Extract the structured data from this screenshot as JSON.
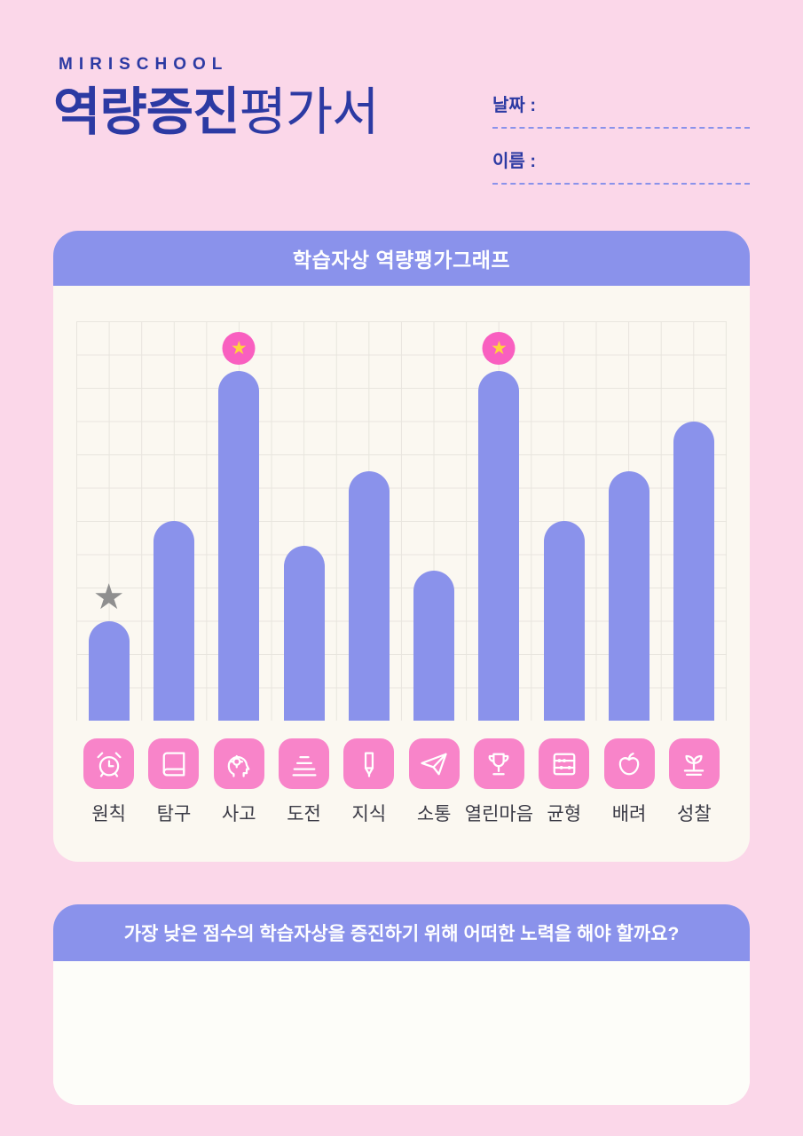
{
  "colors": {
    "page_bg": "#FBD7E9",
    "brand_blue": "#2C3AA3",
    "purple": "#8A92EB",
    "card_bg": "#FBF8F1",
    "grid_line": "#E8E5DE",
    "tile_pink": "#F884C9",
    "badge_pink": "#F95FC0",
    "star_yellow": "#FFD43B",
    "star_gray": "#8F8F8F",
    "label_dark": "#3B3B46",
    "answer_bg": "#FDFDF9"
  },
  "header": {
    "brand": "MIRISCHOOL",
    "title_bold": "역량증진",
    "title_regular": "평가서",
    "fields": [
      {
        "label": "날짜 :"
      },
      {
        "label": "이름 :"
      }
    ]
  },
  "chart_card": {
    "title": "학습자상 역량평가그래프"
  },
  "chart_data": {
    "type": "bar",
    "title": "학습자상 역량평가그래프",
    "categories": [
      "원칙",
      "탐구",
      "사고",
      "도전",
      "지식",
      "소통",
      "열린마음",
      "균형",
      "배려",
      "성찰"
    ],
    "values": [
      2,
      4,
      7,
      3.5,
      5,
      3,
      7,
      4,
      5,
      6
    ],
    "ylim": [
      0,
      8
    ],
    "grid": true,
    "legend": false,
    "bar_color": "#8A92EB",
    "icons": [
      "alarm-clock",
      "book",
      "thinking-head",
      "steps",
      "pencil",
      "paper-plane",
      "trophy",
      "abacus",
      "apple",
      "sprout"
    ],
    "markers": [
      {
        "index": 0,
        "type": "gray-star",
        "meaning": "lowest-score"
      },
      {
        "index": 2,
        "type": "yellow-star-badge",
        "meaning": "highest-score"
      },
      {
        "index": 6,
        "type": "yellow-star-badge",
        "meaning": "highest-score"
      }
    ]
  },
  "question_card": {
    "title": "가장 낮은 점수의 학습자상을 증진하기 위해 어떠한 노력을 해야 할까요?"
  }
}
